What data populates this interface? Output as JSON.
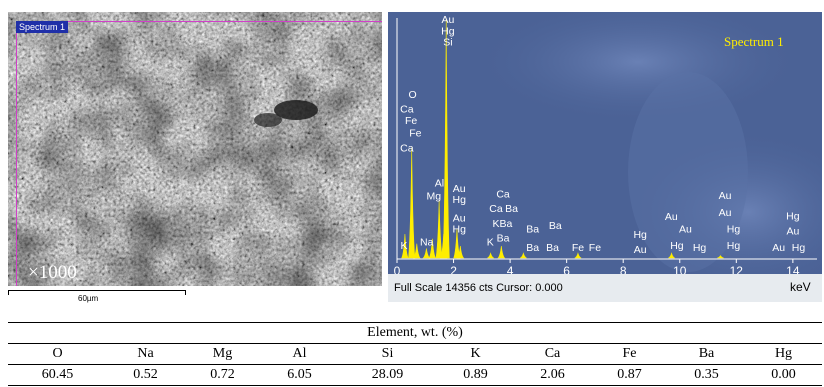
{
  "sem": {
    "tag": "Spectrum 1",
    "magnification": "×1000",
    "scale_label": "60µm"
  },
  "eds": {
    "title": "Spectrum 1",
    "footer": "Full Scale 14356 cts Cursor: 0.000",
    "unit": "keV",
    "colors": {
      "background": "#4e6599",
      "peak": "#ffee00",
      "label": "#ffffff"
    }
  },
  "chart_data": [
    {
      "type": "line",
      "xlabel": "keV",
      "xlim": [
        0,
        14.5
      ],
      "xticks": [
        0,
        2,
        4,
        6,
        8,
        10,
        12,
        14
      ],
      "peaks": [
        {
          "x": 0.28,
          "y": 0.1
        },
        {
          "x": 0.52,
          "y": 0.46
        },
        {
          "x": 0.7,
          "y": 0.06
        },
        {
          "x": 1.04,
          "y": 0.04
        },
        {
          "x": 1.25,
          "y": 0.08
        },
        {
          "x": 1.49,
          "y": 0.24
        },
        {
          "x": 1.65,
          "y": 0.1
        },
        {
          "x": 1.74,
          "y": 1.0
        },
        {
          "x": 2.12,
          "y": 0.12
        },
        {
          "x": 2.24,
          "y": 0.05
        },
        {
          "x": 3.31,
          "y": 0.02
        },
        {
          "x": 3.69,
          "y": 0.05
        },
        {
          "x": 4.47,
          "y": 0.02
        },
        {
          "x": 6.4,
          "y": 0.02
        },
        {
          "x": 9.71,
          "y": 0.02
        },
        {
          "x": 11.44,
          "y": 0.01
        }
      ],
      "labels": [
        {
          "text": "Au",
          "x": 1.8,
          "y": 0.995
        },
        {
          "text": "Hg",
          "x": 1.8,
          "y": 0.948
        },
        {
          "text": "Si",
          "x": 1.8,
          "y": 0.902
        },
        {
          "text": "O",
          "x": 0.55,
          "y": 0.683
        },
        {
          "text": "Ca",
          "x": 0.35,
          "y": 0.622
        },
        {
          "text": "Fe",
          "x": 0.5,
          "y": 0.576
        },
        {
          "text": "Fe",
          "x": 0.65,
          "y": 0.522
        },
        {
          "text": "Ca",
          "x": 0.35,
          "y": 0.461
        },
        {
          "text": "Al",
          "x": 1.5,
          "y": 0.315
        },
        {
          "text": "Mg",
          "x": 1.3,
          "y": 0.261
        },
        {
          "text": "Au",
          "x": 2.2,
          "y": 0.292
        },
        {
          "text": "Hg",
          "x": 2.2,
          "y": 0.246
        },
        {
          "text": "Au",
          "x": 2.2,
          "y": 0.169
        },
        {
          "text": "Hg",
          "x": 2.2,
          "y": 0.123
        },
        {
          "text": "K",
          "x": 0.25,
          "y": 0.054
        },
        {
          "text": "Na",
          "x": 1.05,
          "y": 0.069
        },
        {
          "text": "K",
          "x": 3.3,
          "y": 0.069
        },
        {
          "text": "Ca",
          "x": 3.75,
          "y": 0.269
        },
        {
          "text": "Ca",
          "x": 3.5,
          "y": 0.208
        },
        {
          "text": "Ba",
          "x": 4.05,
          "y": 0.208
        },
        {
          "text": "K",
          "x": 3.5,
          "y": 0.146
        },
        {
          "text": "Ba",
          "x": 3.85,
          "y": 0.146
        },
        {
          "text": "Ba",
          "x": 3.75,
          "y": 0.085
        },
        {
          "text": "Ba",
          "x": 4.8,
          "y": 0.123
        },
        {
          "text": "Ba",
          "x": 5.6,
          "y": 0.138
        },
        {
          "text": "Ba",
          "x": 4.8,
          "y": 0.046
        },
        {
          "text": "Ba",
          "x": 5.5,
          "y": 0.046
        },
        {
          "text": "Fe",
          "x": 6.4,
          "y": 0.046
        },
        {
          "text": "Fe",
          "x": 7.0,
          "y": 0.046
        },
        {
          "text": "Hg",
          "x": 8.6,
          "y": 0.1
        },
        {
          "text": "Au",
          "x": 8.6,
          "y": 0.038
        },
        {
          "text": "Au",
          "x": 9.7,
          "y": 0.176
        },
        {
          "text": "Au",
          "x": 10.2,
          "y": 0.123
        },
        {
          "text": "Hg",
          "x": 9.9,
          "y": 0.054
        },
        {
          "text": "Hg",
          "x": 10.7,
          "y": 0.046
        },
        {
          "text": "Au",
          "x": 11.6,
          "y": 0.262
        },
        {
          "text": "Au",
          "x": 11.6,
          "y": 0.192
        },
        {
          "text": "Hg",
          "x": 11.9,
          "y": 0.123
        },
        {
          "text": "Hg",
          "x": 11.9,
          "y": 0.054
        },
        {
          "text": "Hg",
          "x": 14.0,
          "y": 0.177
        },
        {
          "text": "Au",
          "x": 14.0,
          "y": 0.115
        },
        {
          "text": "Au",
          "x": 13.5,
          "y": 0.046
        },
        {
          "text": "Hg",
          "x": 14.2,
          "y": 0.046
        }
      ]
    },
    {
      "type": "table",
      "title": "Element, wt. (%)",
      "columns": [
        "O",
        "Na",
        "Mg",
        "Al",
        "Si",
        "K",
        "Ca",
        "Fe",
        "Ba",
        "Hg"
      ],
      "values": [
        "60.45",
        "0.52",
        "0.72",
        "6.05",
        "28.09",
        "0.89",
        "2.06",
        "0.87",
        "0.35",
        "0.00"
      ]
    }
  ]
}
